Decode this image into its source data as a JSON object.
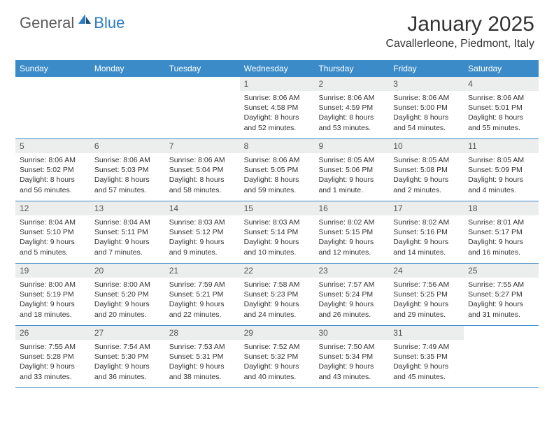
{
  "logo": {
    "general": "General",
    "blue": "Blue"
  },
  "title": "January 2025",
  "location": "Cavallerleone, Piedmont, Italy",
  "colors": {
    "header_bg": "#3b8bc9",
    "header_text": "#ffffff",
    "daynum_bg": "#eceded",
    "row_border": "#3b8bc9",
    "logo_gray": "#5a5a5a",
    "logo_blue": "#2b7bbf"
  },
  "day_headers": [
    "Sunday",
    "Monday",
    "Tuesday",
    "Wednesday",
    "Thursday",
    "Friday",
    "Saturday"
  ],
  "weeks": [
    [
      null,
      null,
      null,
      {
        "n": "1",
        "sr": "8:06 AM",
        "ss": "4:58 PM",
        "dl": "8 hours and 52 minutes."
      },
      {
        "n": "2",
        "sr": "8:06 AM",
        "ss": "4:59 PM",
        "dl": "8 hours and 53 minutes."
      },
      {
        "n": "3",
        "sr": "8:06 AM",
        "ss": "5:00 PM",
        "dl": "8 hours and 54 minutes."
      },
      {
        "n": "4",
        "sr": "8:06 AM",
        "ss": "5:01 PM",
        "dl": "8 hours and 55 minutes."
      }
    ],
    [
      {
        "n": "5",
        "sr": "8:06 AM",
        "ss": "5:02 PM",
        "dl": "8 hours and 56 minutes."
      },
      {
        "n": "6",
        "sr": "8:06 AM",
        "ss": "5:03 PM",
        "dl": "8 hours and 57 minutes."
      },
      {
        "n": "7",
        "sr": "8:06 AM",
        "ss": "5:04 PM",
        "dl": "8 hours and 58 minutes."
      },
      {
        "n": "8",
        "sr": "8:06 AM",
        "ss": "5:05 PM",
        "dl": "8 hours and 59 minutes."
      },
      {
        "n": "9",
        "sr": "8:05 AM",
        "ss": "5:06 PM",
        "dl": "9 hours and 1 minute."
      },
      {
        "n": "10",
        "sr": "8:05 AM",
        "ss": "5:08 PM",
        "dl": "9 hours and 2 minutes."
      },
      {
        "n": "11",
        "sr": "8:05 AM",
        "ss": "5:09 PM",
        "dl": "9 hours and 4 minutes."
      }
    ],
    [
      {
        "n": "12",
        "sr": "8:04 AM",
        "ss": "5:10 PM",
        "dl": "9 hours and 5 minutes."
      },
      {
        "n": "13",
        "sr": "8:04 AM",
        "ss": "5:11 PM",
        "dl": "9 hours and 7 minutes."
      },
      {
        "n": "14",
        "sr": "8:03 AM",
        "ss": "5:12 PM",
        "dl": "9 hours and 9 minutes."
      },
      {
        "n": "15",
        "sr": "8:03 AM",
        "ss": "5:14 PM",
        "dl": "9 hours and 10 minutes."
      },
      {
        "n": "16",
        "sr": "8:02 AM",
        "ss": "5:15 PM",
        "dl": "9 hours and 12 minutes."
      },
      {
        "n": "17",
        "sr": "8:02 AM",
        "ss": "5:16 PM",
        "dl": "9 hours and 14 minutes."
      },
      {
        "n": "18",
        "sr": "8:01 AM",
        "ss": "5:17 PM",
        "dl": "9 hours and 16 minutes."
      }
    ],
    [
      {
        "n": "19",
        "sr": "8:00 AM",
        "ss": "5:19 PM",
        "dl": "9 hours and 18 minutes."
      },
      {
        "n": "20",
        "sr": "8:00 AM",
        "ss": "5:20 PM",
        "dl": "9 hours and 20 minutes."
      },
      {
        "n": "21",
        "sr": "7:59 AM",
        "ss": "5:21 PM",
        "dl": "9 hours and 22 minutes."
      },
      {
        "n": "22",
        "sr": "7:58 AM",
        "ss": "5:23 PM",
        "dl": "9 hours and 24 minutes."
      },
      {
        "n": "23",
        "sr": "7:57 AM",
        "ss": "5:24 PM",
        "dl": "9 hours and 26 minutes."
      },
      {
        "n": "24",
        "sr": "7:56 AM",
        "ss": "5:25 PM",
        "dl": "9 hours and 29 minutes."
      },
      {
        "n": "25",
        "sr": "7:55 AM",
        "ss": "5:27 PM",
        "dl": "9 hours and 31 minutes."
      }
    ],
    [
      {
        "n": "26",
        "sr": "7:55 AM",
        "ss": "5:28 PM",
        "dl": "9 hours and 33 minutes."
      },
      {
        "n": "27",
        "sr": "7:54 AM",
        "ss": "5:30 PM",
        "dl": "9 hours and 36 minutes."
      },
      {
        "n": "28",
        "sr": "7:53 AM",
        "ss": "5:31 PM",
        "dl": "9 hours and 38 minutes."
      },
      {
        "n": "29",
        "sr": "7:52 AM",
        "ss": "5:32 PM",
        "dl": "9 hours and 40 minutes."
      },
      {
        "n": "30",
        "sr": "7:50 AM",
        "ss": "5:34 PM",
        "dl": "9 hours and 43 minutes."
      },
      {
        "n": "31",
        "sr": "7:49 AM",
        "ss": "5:35 PM",
        "dl": "9 hours and 45 minutes."
      },
      null
    ]
  ],
  "labels": {
    "sunrise": "Sunrise:",
    "sunset": "Sunset:",
    "daylight": "Daylight:"
  }
}
